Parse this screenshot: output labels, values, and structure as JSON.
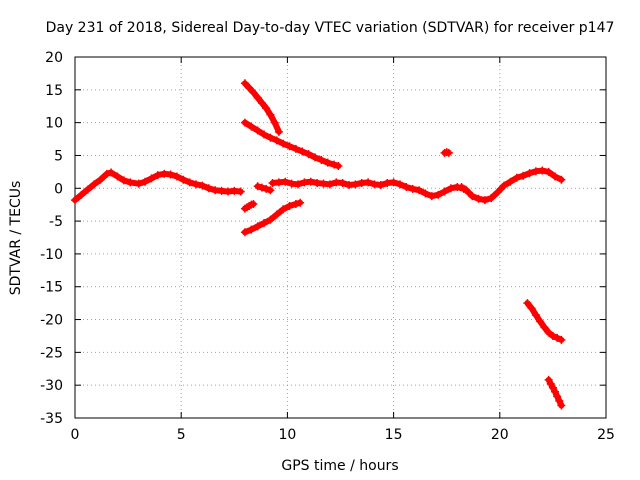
{
  "chart_data": {
    "type": "scatter",
    "title": "Day 231 of 2018, Sidereal Day-to-day VTEC variation (SDTVAR) for receiver p147",
    "xlabel": "GPS time / hours",
    "ylabel": "SDTVAR / TECUs",
    "xlim": [
      0,
      25
    ],
    "ylim": [
      -35,
      20
    ],
    "xticks": [
      0,
      5,
      10,
      15,
      20,
      25
    ],
    "yticks": [
      -35,
      -30,
      -25,
      -20,
      -15,
      -10,
      -5,
      0,
      5,
      10,
      15,
      20
    ],
    "grid": true,
    "marker": "plus",
    "series_color": "#ff0000",
    "series": [
      {
        "name": "main-trace",
        "x": [
          0,
          0.3,
          0.6,
          0.9,
          1.2,
          1.5,
          1.7,
          2,
          2.3,
          2.6,
          3,
          3.3,
          3.6,
          3.9,
          4.2,
          4.5,
          4.8,
          5.1,
          5.4,
          5.7,
          6,
          6.3,
          6.6,
          6.9,
          7.2,
          7.5,
          7.8
        ],
        "y": [
          -1.8,
          -1,
          -0.2,
          0.6,
          1.3,
          2.2,
          2.4,
          1.8,
          1.2,
          0.9,
          0.7,
          1,
          1.5,
          2,
          2.2,
          2.1,
          1.8,
          1.3,
          0.9,
          0.6,
          0.4,
          0,
          -0.3,
          -0.4,
          -0.5,
          -0.4,
          -0.5
        ]
      },
      {
        "name": "middle-trace",
        "x": [
          9.3,
          9.6,
          9.9,
          10.2,
          10.5,
          10.8,
          11.1,
          11.4,
          11.7,
          12,
          12.3,
          12.6,
          12.9,
          13.2,
          13.5,
          13.8,
          14.1,
          14.4,
          14.7,
          15,
          15.3,
          15.6,
          15.9,
          16.2,
          16.5,
          16.8,
          17.1,
          17.4,
          17.7,
          18,
          18.3
        ],
        "y": [
          0.8,
          0.9,
          1,
          0.7,
          0.6,
          0.9,
          1,
          0.8,
          0.7,
          0.6,
          0.9,
          0.8,
          0.5,
          0.6,
          0.8,
          0.9,
          0.6,
          0.5,
          0.8,
          0.9,
          0.6,
          0.2,
          -0.1,
          -0.3,
          -0.8,
          -1.2,
          -1,
          -0.5,
          0,
          0.2,
          -0.1
        ]
      },
      {
        "name": "evening-trace",
        "x": [
          18.2,
          18.4,
          18.7,
          19,
          19.3,
          19.6,
          19.9,
          20.2,
          20.5,
          20.8,
          21.1,
          21.4,
          21.7,
          22,
          22.3,
          22.6,
          22.9
        ],
        "y": [
          0.2,
          -0.2,
          -1.2,
          -1.6,
          -1.8,
          -1.5,
          -0.6,
          0.4,
          1,
          1.6,
          1.9,
          2.3,
          2.6,
          2.7,
          2.5,
          1.8,
          1.3
        ]
      },
      {
        "name": "small-mid-dip",
        "x": [
          8.6,
          8.8,
          9,
          9.2
        ],
        "y": [
          0.3,
          0.1,
          -0.1,
          -0.3
        ]
      },
      {
        "name": "short-dash-lower",
        "x": [
          8,
          8.1,
          8.2,
          8.3,
          8.4
        ],
        "y": [
          -3.1,
          -2.9,
          -2.7,
          -2.5,
          -2.4
        ]
      },
      {
        "name": "upper-diagonal-15",
        "x": [
          8,
          8.2,
          8.4,
          8.6,
          8.8,
          9,
          9.2,
          9.4,
          9.6
        ],
        "y": [
          16,
          15.3,
          14.6,
          13.8,
          13,
          12.2,
          11.2,
          10,
          8.6
        ]
      },
      {
        "name": "upper-diagonal-10",
        "x": [
          8,
          8.3,
          8.6,
          8.9,
          9.2,
          9.5,
          9.8,
          10.1,
          10.4,
          10.7,
          11,
          11.3,
          11.6,
          11.9,
          12.2,
          12.4
        ],
        "y": [
          10,
          9.4,
          8.8,
          8.2,
          7.7,
          7.3,
          6.8,
          6.4,
          6,
          5.6,
          5.2,
          4.7,
          4.3,
          3.9,
          3.6,
          3.4
        ]
      },
      {
        "name": "lower-rising-trace",
        "x": [
          8,
          8.3,
          8.6,
          8.9,
          9.2,
          9.5,
          9.8,
          10.1,
          10.4,
          10.6
        ],
        "y": [
          -6.7,
          -6.3,
          -5.8,
          -5.3,
          -4.8,
          -4,
          -3.2,
          -2.7,
          -2.4,
          -2.2
        ]
      },
      {
        "name": "isolated-blip",
        "x": [
          17.4,
          17.5,
          17.6
        ],
        "y": [
          5.4,
          5.5,
          5.4
        ]
      },
      {
        "name": "falling-trace-20",
        "x": [
          21.3,
          21.5,
          21.7,
          21.9,
          22.1,
          22.3,
          22.5,
          22.7,
          22.9
        ],
        "y": [
          -17.5,
          -18.3,
          -19.3,
          -20.3,
          -21.2,
          -22,
          -22.5,
          -22.8,
          -23.1
        ]
      },
      {
        "name": "falling-trace-30",
        "x": [
          22.3,
          22.4,
          22.5,
          22.6,
          22.7,
          22.8,
          22.9
        ],
        "y": [
          -29.2,
          -29.8,
          -30.4,
          -31,
          -31.7,
          -32.4,
          -33.1
        ]
      }
    ]
  }
}
